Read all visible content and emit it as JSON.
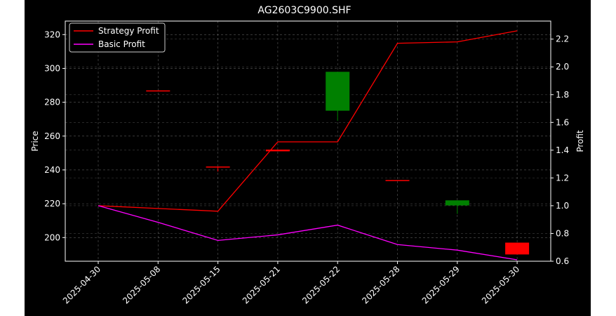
{
  "chart_data": {
    "type": "candlestick+line",
    "title": "AG2603C9900.SHF",
    "xlabel": "",
    "ylabel_left": "Price",
    "ylabel_right": "Profit",
    "categories": [
      "2025-04-30",
      "2025-05-08",
      "2025-05-15",
      "2025-05-21",
      "2025-05-22",
      "2025-05-28",
      "2025-05-29",
      "2025-05-30"
    ],
    "ylim_left": [
      186,
      328
    ],
    "ylim_right": [
      0.6,
      2.33
    ],
    "yticks_left": [
      200,
      220,
      240,
      260,
      280,
      300,
      320
    ],
    "yticks_right": [
      0.6,
      0.8,
      1.0,
      1.2,
      1.4,
      1.6,
      1.8,
      2.0,
      2.2
    ],
    "grid": true,
    "legend_position": "upper-left",
    "candles": [
      {
        "date": "2025-05-08",
        "open": 287,
        "high": 287,
        "low": 287,
        "close": 287,
        "color": "#ff0000"
      },
      {
        "date": "2025-05-15",
        "open": 242,
        "high": 242,
        "low": 239,
        "close": 242,
        "color": "#ff0000"
      },
      {
        "date": "2025-05-21",
        "open": 252,
        "high": 252,
        "low": 251,
        "close": 251,
        "color": "#ff0000"
      },
      {
        "date": "2025-05-22",
        "open": 275,
        "high": 298,
        "low": 269,
        "close": 298,
        "color": "#008000"
      },
      {
        "date": "2025-05-28",
        "open": 234,
        "high": 234,
        "low": 234,
        "close": 234,
        "color": "#ff0000"
      },
      {
        "date": "2025-05-29",
        "open": 219,
        "high": 222,
        "low": 214,
        "close": 222,
        "color": "#008000"
      },
      {
        "date": "2025-05-30",
        "open": 197,
        "high": 197,
        "low": 190,
        "close": 190,
        "color": "#ff0000"
      }
    ],
    "series": [
      {
        "name": "Strategy Profit",
        "color": "#ff0000",
        "values": [
          1.0,
          0.98,
          0.96,
          1.46,
          1.46,
          2.17,
          2.18,
          2.26
        ]
      },
      {
        "name": "Basic Profit",
        "color": "#ff00ff",
        "values": [
          1.0,
          0.88,
          0.75,
          0.79,
          0.86,
          0.72,
          0.68,
          0.61
        ]
      }
    ],
    "colors": {
      "background": "#000000",
      "text": "#ffffff",
      "grid": "#808080"
    }
  }
}
